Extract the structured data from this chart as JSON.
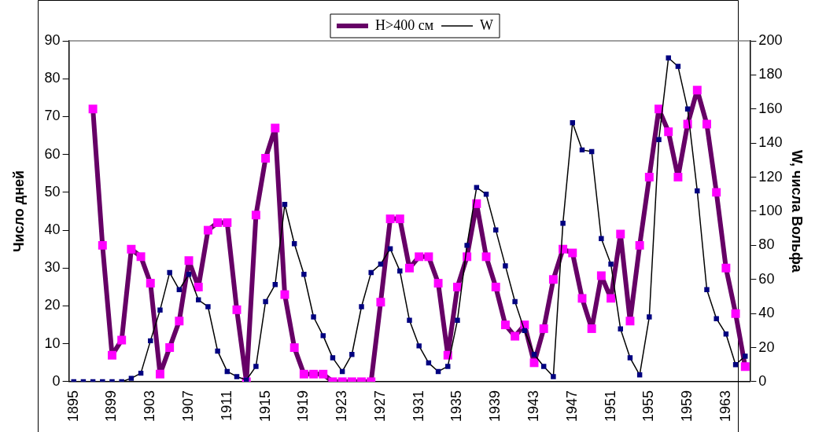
{
  "chart_data": {
    "type": "line",
    "ylabel": "Число дней",
    "y2label": "W, числа Вольфа",
    "categories": [
      "1895",
      null,
      null,
      null,
      "1899",
      null,
      null,
      null,
      "1903",
      null,
      null,
      null,
      "1907",
      null,
      null,
      null,
      "1911",
      null,
      null,
      null,
      "1915",
      null,
      null,
      null,
      "1919",
      null,
      null,
      null,
      "1923",
      null,
      null,
      null,
      "1927",
      null,
      null,
      null,
      "1931",
      null,
      null,
      null,
      "1935",
      null,
      null,
      null,
      "1939",
      null,
      null,
      null,
      "1943",
      null,
      null,
      null,
      "1947",
      null,
      null,
      null,
      "1951",
      null,
      null,
      null,
      "1955",
      null,
      null,
      null,
      "1959",
      null,
      null,
      null,
      "1963",
      null,
      null
    ],
    "series": [
      {
        "name": "H>400 см",
        "color": "#660066",
        "values": [
          null,
          null,
          72,
          36,
          7,
          11,
          35,
          33,
          26,
          2,
          9,
          16,
          32,
          25,
          40,
          42,
          42,
          19,
          0,
          44,
          59,
          67,
          23,
          9,
          2,
          2,
          2,
          0,
          0,
          0,
          0,
          0,
          21,
          43,
          43,
          30,
          33,
          33,
          26,
          7,
          25,
          33,
          47,
          33,
          25,
          15,
          12,
          15,
          5,
          14,
          27,
          35,
          34,
          22,
          14,
          28,
          22,
          39,
          16,
          36,
          54,
          72,
          66,
          54,
          68,
          77,
          68,
          50,
          30,
          18,
          4
        ]
      },
      {
        "name": "W",
        "color": "#000000",
        "axis": "y2",
        "values": [
          0,
          0,
          0,
          0,
          0,
          0,
          2,
          5,
          24,
          42,
          64,
          54,
          63,
          48,
          44,
          18,
          6,
          3,
          1,
          9,
          47,
          57,
          104,
          81,
          63,
          38,
          27,
          14,
          6,
          16,
          44,
          64,
          69,
          78,
          65,
          36,
          21,
          11,
          6,
          9,
          36,
          80,
          114,
          110,
          89,
          68,
          47,
          30,
          16,
          9,
          3,
          93,
          152,
          136,
          135,
          84,
          69,
          31,
          14,
          4,
          38,
          142,
          190,
          185,
          160,
          112,
          54,
          37,
          28,
          10,
          15
        ]
      }
    ],
    "ylim": [
      0,
      90
    ],
    "yticks": [
      0,
      10,
      20,
      30,
      40,
      50,
      60,
      70,
      80,
      90
    ],
    "y2lim": [
      0,
      200
    ],
    "y2ticks": [
      0,
      20,
      40,
      60,
      80,
      100,
      120,
      140,
      160,
      180,
      200
    ],
    "grid": false,
    "legend": "top",
    "marker": "square",
    "line_style": "solid"
  }
}
